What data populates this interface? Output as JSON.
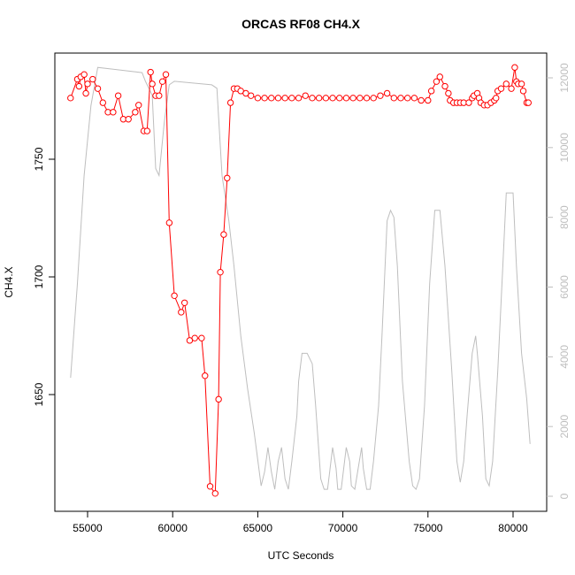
{
  "chart_data": {
    "type": "line",
    "title": "ORCAS RF08 CH4.X",
    "xlabel": "UTC Seconds",
    "ylabel": "CH4.X",
    "xlim": [
      53077,
      81976
    ],
    "ylim": [
      1600.4,
      1795.1
    ],
    "y2lim": [
      -431,
      12710
    ],
    "xticks": [
      55000,
      60000,
      65000,
      70000,
      75000,
      80000
    ],
    "yticks": [
      1650,
      1700,
      1750
    ],
    "y2ticks": [
      0,
      2000,
      4000,
      6000,
      8000,
      10000,
      12000
    ],
    "y2_color": "#bebebe",
    "grid": false,
    "series": [
      {
        "color": "#ff0000",
        "marker": "circle",
        "x": [
          54000,
          54400,
          54500,
          54600,
          54800,
          54900,
          55000,
          55300,
          55600,
          55900,
          56200,
          56500,
          56800,
          57100,
          57400,
          57800,
          58000,
          58300,
          58500,
          58700,
          58800,
          59000,
          59200,
          59400,
          59600,
          59800,
          60100,
          60500,
          60700,
          61000,
          61300,
          61700,
          61900,
          62200,
          62500,
          62700,
          62800,
          63000,
          63200,
          63400,
          63600,
          63800,
          64000,
          64300,
          64600,
          65000,
          65400,
          65800,
          66200,
          66600,
          67000,
          67400,
          67800,
          68200,
          68600,
          69000,
          69400,
          69800,
          70200,
          70600,
          71000,
          71400,
          71800,
          72200,
          72600,
          73000,
          73400,
          73800,
          74200,
          74600,
          75000,
          75200,
          75500,
          75700,
          76000,
          76200,
          76300,
          76500,
          76700,
          76900,
          77100,
          77400,
          77600,
          77700,
          77900,
          78000,
          78100,
          78300,
          78500,
          78700,
          78900,
          79000,
          79100,
          79300,
          79600,
          79900,
          80100,
          80200,
          80300,
          80500,
          80600,
          80800,
          80900
        ],
        "values": [
          1776,
          1784,
          1781,
          1785,
          1786,
          1778,
          1782,
          1784,
          1780,
          1774,
          1770,
          1770,
          1777,
          1767,
          1767,
          1770,
          1773,
          1762,
          1762,
          1787,
          1782,
          1777,
          1777,
          1783,
          1786,
          1723,
          1692,
          1685,
          1689,
          1673,
          1674,
          1674,
          1658,
          1611,
          1608,
          1648,
          1702,
          1718,
          1742,
          1774,
          1780,
          1780,
          1779,
          1778,
          1777,
          1776,
          1776,
          1776,
          1776,
          1776,
          1776,
          1776,
          1777,
          1776,
          1776,
          1776,
          1776,
          1776,
          1776,
          1776,
          1776,
          1776,
          1776,
          1777,
          1778,
          1776,
          1776,
          1776,
          1776,
          1775,
          1775,
          1779,
          1783,
          1785,
          1781,
          1778,
          1775,
          1774,
          1774,
          1774,
          1774,
          1774,
          1776,
          1777,
          1778,
          1776,
          1774,
          1773,
          1773,
          1774,
          1775,
          1776,
          1779,
          1780,
          1782,
          1780,
          1789,
          1783,
          1782,
          1782,
          1779,
          1774,
          1774
        ]
      },
      {
        "color": "#bebebe",
        "axis": "y2",
        "x": [
          54000,
          54400,
          54800,
          55200,
          55600,
          58200,
          58400,
          58800,
          59000,
          59200,
          59500,
          59800,
          60100,
          62300,
          62600,
          62900,
          63300,
          63600,
          64000,
          64400,
          64800,
          65200,
          65400,
          65600,
          65800,
          66000,
          66200,
          66400,
          66600,
          66800,
          67000,
          67300,
          67400,
          67600,
          67900,
          68200,
          68400,
          68700,
          68900,
          69100,
          69300,
          69400,
          69600,
          69700,
          69900,
          70100,
          70200,
          70400,
          70500,
          70700,
          70900,
          71100,
          71200,
          71400,
          71600,
          71800,
          72100,
          72300,
          72600,
          72800,
          73000,
          73200,
          73500,
          73900,
          74100,
          74300,
          74500,
          74800,
          75100,
          75400,
          75700,
          76000,
          76400,
          76700,
          76900,
          77100,
          77300,
          77600,
          77800,
          77900,
          78200,
          78400,
          78600,
          78800,
          79100,
          79400,
          79600,
          80000,
          80200,
          80500,
          80800,
          81000
        ],
        "values": [
          3400,
          6100,
          9200,
          11200,
          12300,
          12150,
          11900,
          11500,
          9400,
          9200,
          10700,
          11800,
          11900,
          11800,
          11700,
          9200,
          7900,
          6600,
          4600,
          3100,
          1800,
          300,
          700,
          1400,
          700,
          200,
          1000,
          1400,
          500,
          200,
          1000,
          2300,
          3300,
          4100,
          4100,
          3800,
          2600,
          500,
          200,
          200,
          1000,
          1400,
          800,
          200,
          200,
          1000,
          1400,
          1000,
          300,
          200,
          800,
          1400,
          800,
          200,
          200,
          1000,
          2600,
          4600,
          7900,
          8200,
          8000,
          6600,
          3300,
          1000,
          300,
          200,
          500,
          2600,
          6100,
          8200,
          8200,
          6600,
          3600,
          1000,
          400,
          1000,
          2300,
          4100,
          4600,
          4100,
          2300,
          500,
          300,
          1000,
          3600,
          6600,
          8700,
          8700,
          6600,
          4100,
          2800,
          1500
        ]
      }
    ]
  }
}
